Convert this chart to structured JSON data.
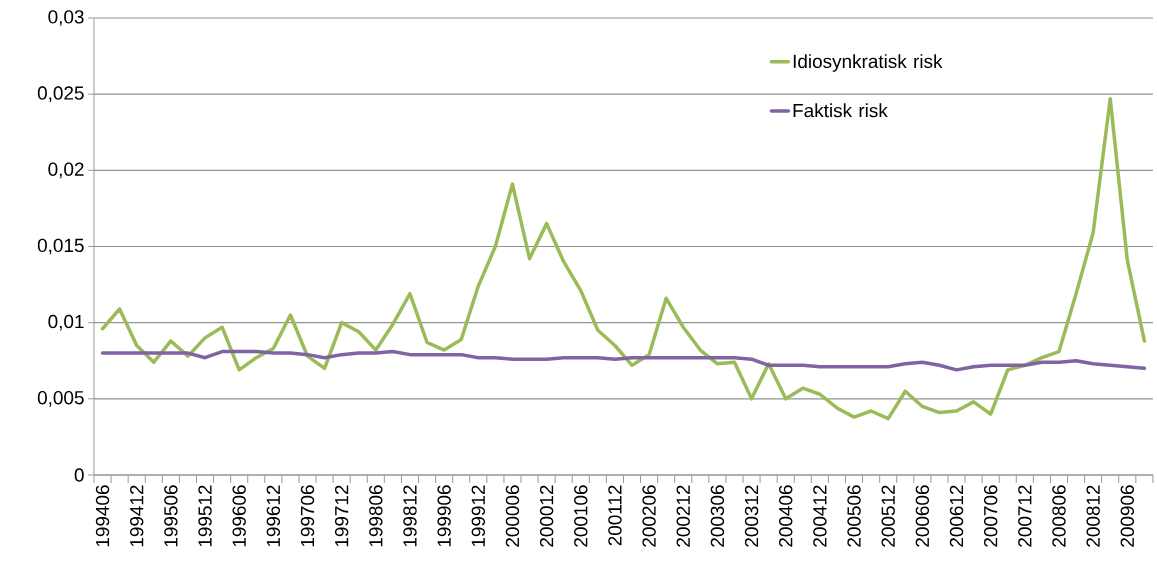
{
  "chart_data": {
    "type": "line",
    "categories": [
      "199406",
      null,
      "199412",
      null,
      "199506",
      null,
      "199512",
      null,
      "199606",
      null,
      "199612",
      null,
      "199706",
      null,
      "199712",
      null,
      "199806",
      null,
      "199812",
      null,
      "199906",
      null,
      "199912",
      null,
      "200006",
      null,
      "200012",
      null,
      "200106",
      null,
      "200112",
      null,
      "200206",
      null,
      "200212",
      null,
      "200306",
      null,
      "200312",
      null,
      "200406",
      null,
      "200412",
      null,
      "200506",
      null,
      "200512",
      null,
      "200606",
      null,
      "200612",
      null,
      "200706",
      null,
      "200712",
      null,
      "200806",
      null,
      "200812",
      null,
      "200906",
      null
    ],
    "series": [
      {
        "name": "Idiosynkratisk risk",
        "color": "#9bbb59",
        "values": [
          0.0096,
          0.0109,
          0.0085,
          0.0074,
          0.0088,
          0.0078,
          0.009,
          0.0097,
          0.0069,
          0.0077,
          0.0083,
          0.0105,
          0.0078,
          0.007,
          0.01,
          0.0094,
          0.0082,
          0.0099,
          0.0119,
          0.0087,
          0.0082,
          0.0089,
          0.0124,
          0.015,
          0.0191,
          0.0142,
          0.0165,
          0.014,
          0.0121,
          0.0095,
          0.0085,
          0.0072,
          0.0079,
          0.0116,
          0.0097,
          0.0082,
          0.0073,
          0.0074,
          0.005,
          0.0073,
          0.005,
          0.0057,
          0.0053,
          0.0044,
          0.0038,
          0.0042,
          0.0037,
          0.0055,
          0.0045,
          0.0041,
          0.0042,
          0.0048,
          0.004,
          0.0069,
          0.0072,
          0.0077,
          0.0081,
          0.0119,
          0.0159,
          0.0247,
          0.0141,
          0.0088
        ]
      },
      {
        "name": "Faktisk risk",
        "color": "#8064a2",
        "values": [
          0.008,
          0.008,
          0.008,
          0.008,
          0.008,
          0.008,
          0.0077,
          0.0081,
          0.0081,
          0.0081,
          0.008,
          0.008,
          0.0079,
          0.0077,
          0.0079,
          0.008,
          0.008,
          0.0081,
          0.0079,
          0.0079,
          0.0079,
          0.0079,
          0.0077,
          0.0077,
          0.0076,
          0.0076,
          0.0076,
          0.0077,
          0.0077,
          0.0077,
          0.0076,
          0.0077,
          0.0077,
          0.0077,
          0.0077,
          0.0077,
          0.0077,
          0.0077,
          0.0076,
          0.0072,
          0.0072,
          0.0072,
          0.0071,
          0.0071,
          0.0071,
          0.0071,
          0.0071,
          0.0073,
          0.0074,
          0.0072,
          0.0069,
          0.0071,
          0.0072,
          0.0072,
          0.0072,
          0.0074,
          0.0074,
          0.0075,
          0.0073,
          0.0072,
          0.0071,
          0.007
        ]
      }
    ],
    "ylim": [
      0,
      0.03
    ],
    "yticks": [
      0,
      {
        "value": 0.005,
        "label": "0,005"
      },
      {
        "value": 0.01,
        "label": "0,01"
      },
      {
        "value": 0.015,
        "label": "0,015"
      },
      {
        "value": 0.02,
        "label": "0,02"
      },
      {
        "value": 0.025,
        "label": "0,025"
      },
      {
        "value": 0.03,
        "label": "0,03"
      }
    ],
    "grid": "y",
    "legend": "top right",
    "marker": "none",
    "line_style": "solid"
  }
}
